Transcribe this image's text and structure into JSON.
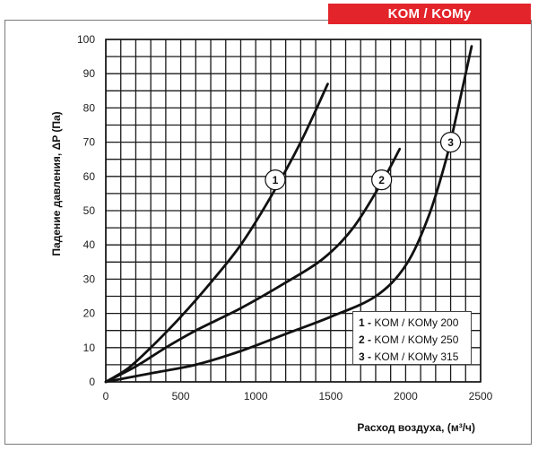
{
  "header": {
    "badge": "KOM / KOMy"
  },
  "chart_data": {
    "type": "line",
    "xlabel": "Расход воздуха, (м³/ч)",
    "ylabel": "Падение давления, ΔP (Па)",
    "xlim": [
      0,
      2500
    ],
    "ylim": [
      0,
      100
    ],
    "x_ticks": [
      0,
      500,
      1000,
      1500,
      2000,
      2500
    ],
    "y_ticks": [
      0,
      10,
      20,
      30,
      40,
      50,
      60,
      70,
      80,
      90,
      100
    ],
    "grid": true,
    "legend_position": "bottom-right",
    "series": [
      {
        "name": "1",
        "legend": {
          "num": "1 -",
          "text": "KOM / KOMy 200"
        },
        "x": [
          0,
          150,
          300,
          500,
          700,
          900,
          1100,
          1300,
          1480
        ],
        "y": [
          0,
          4,
          10,
          19,
          29,
          40,
          54,
          70,
          87
        ],
        "marker": {
          "x": 1130,
          "y": 59
        }
      },
      {
        "name": "2",
        "legend": {
          "num": "2 -",
          "text": "KOM / KOMy 250"
        },
        "x": [
          0,
          200,
          400,
          600,
          900,
          1200,
          1450,
          1650,
          1850,
          1960
        ],
        "y": [
          0,
          4.5,
          10,
          15,
          21.5,
          29,
          36,
          45,
          59,
          68
        ],
        "marker": {
          "x": 1840,
          "y": 59
        }
      },
      {
        "name": "3",
        "legend": {
          "num": "3 -",
          "text": "KOM / KOMy 315"
        },
        "x": [
          0,
          300,
          600,
          900,
          1200,
          1500,
          1800,
          2000,
          2150,
          2270,
          2350,
          2440
        ],
        "y": [
          0,
          2.5,
          5,
          9,
          14,
          19,
          25,
          34,
          48,
          65,
          80,
          98
        ],
        "marker": {
          "x": 2300,
          "y": 70
        }
      }
    ]
  }
}
